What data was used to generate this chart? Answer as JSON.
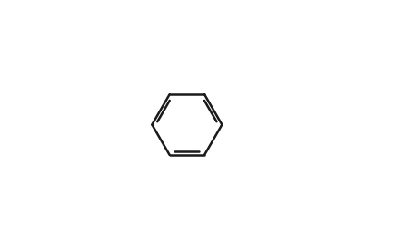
{
  "background_color": "#ffffff",
  "line_color": "#1a1a1a",
  "line_width": 1.8,
  "figsize": [
    4.37,
    2.67
  ],
  "dpi": 100
}
